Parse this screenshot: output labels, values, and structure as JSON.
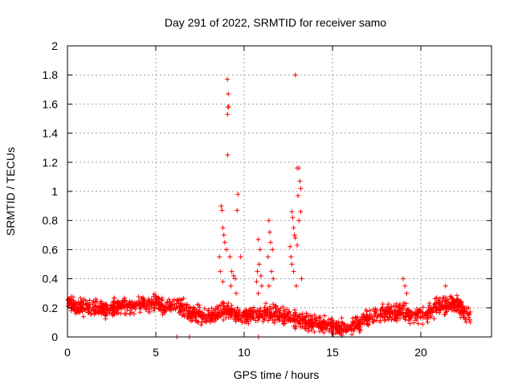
{
  "chart_data": {
    "type": "scatter",
    "title": "Day 291 of 2022, SRMTID for receiver samo",
    "xlabel": "GPS time / hours",
    "ylabel": "SRMTID / TECUs",
    "xlim": [
      0,
      24
    ],
    "ylim": [
      0,
      2
    ],
    "xticks": [
      0,
      5,
      10,
      15,
      20
    ],
    "yticks": [
      0,
      0.2,
      0.4,
      0.6,
      0.8,
      1,
      1.2,
      1.4,
      1.6,
      1.8,
      2
    ],
    "xtick_labels": [
      "0",
      "5",
      "10",
      "15",
      "20"
    ],
    "ytick_labels": [
      "0",
      "0.2",
      "0.4",
      "0.6",
      "0.8",
      "1",
      "1.2",
      "1.4",
      "1.6",
      "1.8",
      "2"
    ],
    "grid": true,
    "marker": "+",
    "series": [
      {
        "name": "SRMTID",
        "color": "#ff0000",
        "baseline": [
          [
            0.0,
            0.25
          ],
          [
            0.5,
            0.2
          ],
          [
            1.0,
            0.22
          ],
          [
            1.5,
            0.2
          ],
          [
            2.0,
            0.18
          ],
          [
            2.5,
            0.2
          ],
          [
            3.0,
            0.22
          ],
          [
            3.5,
            0.2
          ],
          [
            4.0,
            0.23
          ],
          [
            4.5,
            0.22
          ],
          [
            5.0,
            0.24
          ],
          [
            5.5,
            0.21
          ],
          [
            6.0,
            0.22
          ],
          [
            6.5,
            0.2
          ],
          [
            7.0,
            0.17
          ],
          [
            7.5,
            0.15
          ],
          [
            8.0,
            0.13
          ],
          [
            8.5,
            0.17
          ],
          [
            9.0,
            0.18
          ],
          [
            9.5,
            0.16
          ],
          [
            10.0,
            0.15
          ],
          [
            10.5,
            0.15
          ],
          [
            11.0,
            0.15
          ],
          [
            11.5,
            0.17
          ],
          [
            12.0,
            0.15
          ],
          [
            12.5,
            0.14
          ],
          [
            13.0,
            0.12
          ],
          [
            13.5,
            0.1
          ],
          [
            14.0,
            0.09
          ],
          [
            14.5,
            0.08
          ],
          [
            15.0,
            0.07
          ],
          [
            15.5,
            0.06
          ],
          [
            16.0,
            0.07
          ],
          [
            16.5,
            0.09
          ],
          [
            17.0,
            0.13
          ],
          [
            17.5,
            0.15
          ],
          [
            18.0,
            0.17
          ],
          [
            18.5,
            0.16
          ],
          [
            19.0,
            0.18
          ],
          [
            19.5,
            0.14
          ],
          [
            20.0,
            0.15
          ],
          [
            20.5,
            0.18
          ],
          [
            21.0,
            0.21
          ],
          [
            21.5,
            0.22
          ],
          [
            22.0,
            0.23
          ],
          [
            22.5,
            0.17
          ],
          [
            22.8,
            0.15
          ]
        ],
        "spread": 0.05,
        "count": 1600,
        "extra_points": [
          [
            9.05,
            1.77
          ],
          [
            9.1,
            1.67
          ],
          [
            9.08,
            1.58
          ],
          [
            9.13,
            1.58
          ],
          [
            9.06,
            1.53
          ],
          [
            9.07,
            1.25
          ],
          [
            9.65,
            0.98
          ],
          [
            9.6,
            0.87
          ],
          [
            8.7,
            0.9
          ],
          [
            8.75,
            0.87
          ],
          [
            8.8,
            0.75
          ],
          [
            8.85,
            0.7
          ],
          [
            8.9,
            0.65
          ],
          [
            8.6,
            0.55
          ],
          [
            9.0,
            0.6
          ],
          [
            9.2,
            0.55
          ],
          [
            9.3,
            0.45
          ],
          [
            9.4,
            0.42
          ],
          [
            9.5,
            0.4
          ],
          [
            9.8,
            0.55
          ],
          [
            8.65,
            0.45
          ],
          [
            8.8,
            0.38
          ],
          [
            9.25,
            0.35
          ],
          [
            9.55,
            0.3
          ],
          [
            10.8,
            0.67
          ],
          [
            10.9,
            0.6
          ],
          [
            10.85,
            0.5
          ],
          [
            10.75,
            0.45
          ],
          [
            10.95,
            0.42
          ],
          [
            10.7,
            0.38
          ],
          [
            10.8,
            0.3
          ],
          [
            11.0,
            0.35
          ],
          [
            10.82,
            0.0
          ],
          [
            11.4,
            0.8
          ],
          [
            11.45,
            0.72
          ],
          [
            11.5,
            0.65
          ],
          [
            11.6,
            0.6
          ],
          [
            11.35,
            0.55
          ],
          [
            11.55,
            0.45
          ],
          [
            11.4,
            0.35
          ],
          [
            11.65,
            0.4
          ],
          [
            12.9,
            1.8
          ],
          [
            13.0,
            1.16
          ],
          [
            13.1,
            1.16
          ],
          [
            13.15,
            1.07
          ],
          [
            13.2,
            1.02
          ],
          [
            13.05,
            0.97
          ],
          [
            13.2,
            0.86
          ],
          [
            13.1,
            0.8
          ],
          [
            12.7,
            0.86
          ],
          [
            12.75,
            0.82
          ],
          [
            12.8,
            0.75
          ],
          [
            12.85,
            0.7
          ],
          [
            12.9,
            0.68
          ],
          [
            13.0,
            0.63
          ],
          [
            12.6,
            0.62
          ],
          [
            12.65,
            0.55
          ],
          [
            12.7,
            0.5
          ],
          [
            12.8,
            0.45
          ],
          [
            13.25,
            0.4
          ],
          [
            12.95,
            0.35
          ],
          [
            19.0,
            0.4
          ],
          [
            19.1,
            0.35
          ],
          [
            19.2,
            0.3
          ],
          [
            21.4,
            0.35
          ],
          [
            6.2,
            0.0
          ],
          [
            6.9,
            0.0
          ]
        ]
      }
    ]
  }
}
